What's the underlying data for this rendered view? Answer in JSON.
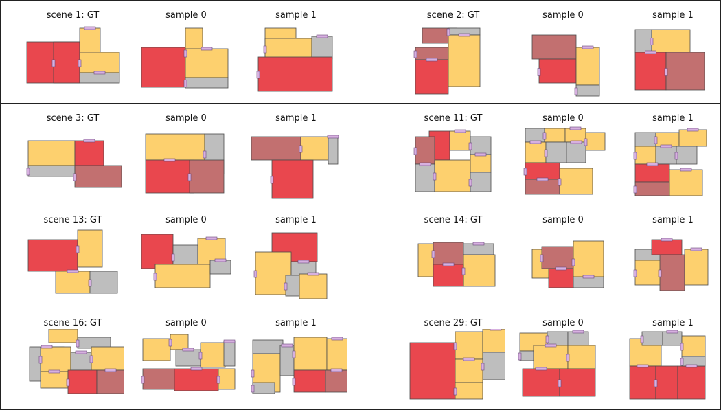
{
  "colors": {
    "red": "#e9474e",
    "yellow": "#fdd06e",
    "gray": "#bebebe",
    "rose": "#c27070",
    "door": "#d7b0e0",
    "edge": "#4a4a4a"
  },
  "scenes": [
    {
      "panels": [
        {
          "title": "scene 1: GT"
        },
        {
          "title": "sample 0"
        },
        {
          "title": "sample 1"
        }
      ]
    },
    {
      "panels": [
        {
          "title": "scene 2: GT"
        },
        {
          "title": "sample 0"
        },
        {
          "title": "sample 1"
        }
      ]
    },
    {
      "panels": [
        {
          "title": "scene 3: GT"
        },
        {
          "title": "sample 0"
        },
        {
          "title": "sample 1"
        }
      ]
    },
    {
      "panels": [
        {
          "title": "scene 11: GT"
        },
        {
          "title": "sample 0"
        },
        {
          "title": "sample 1"
        }
      ]
    },
    {
      "panels": [
        {
          "title": "scene 13: GT"
        },
        {
          "title": "sample 0"
        },
        {
          "title": "sample 1"
        }
      ]
    },
    {
      "panels": [
        {
          "title": "scene 14: GT"
        },
        {
          "title": "sample 0"
        },
        {
          "title": "sample 1"
        }
      ]
    },
    {
      "panels": [
        {
          "title": "scene 16: GT"
        },
        {
          "title": "sample 0"
        },
        {
          "title": "sample 1"
        }
      ]
    },
    {
      "panels": [
        {
          "title": "scene 29: GT"
        },
        {
          "title": "sample 0"
        },
        {
          "title": "sample 1"
        }
      ]
    }
  ]
}
